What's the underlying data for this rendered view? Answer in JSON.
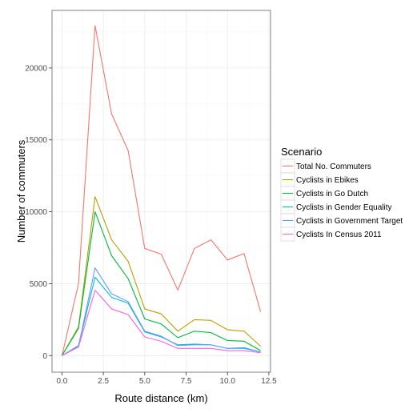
{
  "chart_data": {
    "type": "line",
    "xlabel": "Route distance (km)",
    "ylabel": "Number of commuters",
    "xlim": [
      -0.6,
      12.6
    ],
    "ylim": [
      -1150,
      24000
    ],
    "x_ticks": [
      0,
      2.5,
      5,
      7.5,
      10,
      12.5
    ],
    "x_tick_labels": [
      "0.0",
      "2.5",
      "5.0",
      "7.5",
      "10.0",
      "12.5"
    ],
    "y_ticks": [
      0,
      5000,
      10000,
      15000,
      20000
    ],
    "y_tick_labels": [
      "0",
      "5000",
      "10000",
      "15000",
      "20000"
    ],
    "grid": true,
    "legend": {
      "title": "Scenario",
      "position": "right"
    },
    "x": [
      0,
      1,
      2,
      3,
      4,
      5,
      6,
      7,
      8,
      9,
      10,
      11,
      12
    ],
    "series": [
      {
        "name": "Total No. Commuters",
        "color": "#F8766D",
        "values": [
          0,
          5000,
          22950,
          16800,
          14250,
          7450,
          7050,
          4550,
          7450,
          8050,
          6650,
          7100,
          3050
        ]
      },
      {
        "name": "Cyclists in Ebikes",
        "color": "#B79F00",
        "values": [
          0,
          2000,
          11050,
          8050,
          6550,
          3250,
          2900,
          1700,
          2500,
          2450,
          1800,
          1700,
          650
        ]
      },
      {
        "name": "Cyclists in Go Dutch",
        "color": "#00BA38",
        "values": [
          0,
          1900,
          10000,
          6950,
          5350,
          2550,
          2200,
          1250,
          1700,
          1600,
          1050,
          1000,
          350
        ]
      },
      {
        "name": "Cyclists in Gender Equality",
        "color": "#00BFC4",
        "values": [
          0,
          700,
          5450,
          4050,
          3650,
          1650,
          1300,
          750,
          800,
          750,
          500,
          550,
          250
        ]
      },
      {
        "name": "Cyclists in Government Target",
        "color": "#619CFF",
        "values": [
          0,
          650,
          6100,
          4300,
          3750,
          1700,
          1350,
          700,
          750,
          750,
          500,
          500,
          250
        ]
      },
      {
        "name": "Cyclists In Census 2011",
        "color": "#F564E3",
        "values": [
          0,
          600,
          4550,
          3250,
          2850,
          1300,
          1000,
          500,
          500,
          500,
          350,
          350,
          200
        ]
      }
    ]
  }
}
